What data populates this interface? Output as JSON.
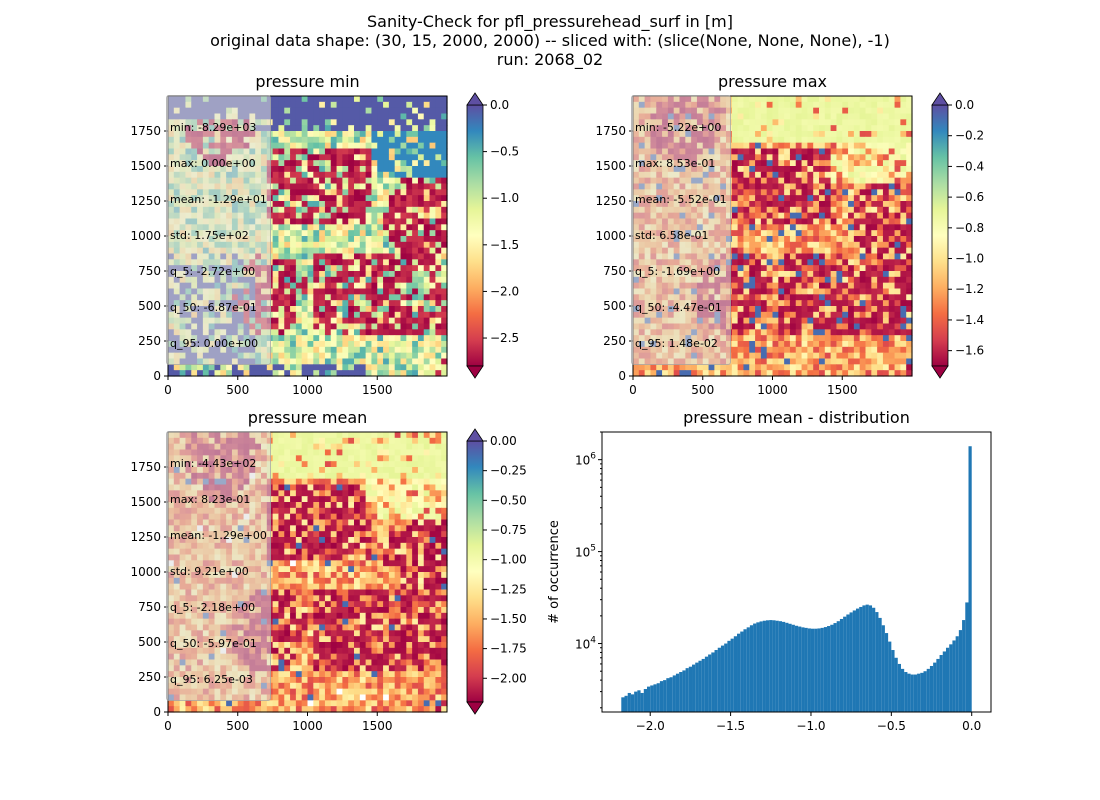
{
  "figure": {
    "suptitle_lines": [
      "Sanity-Check for pfl_pressurehead_surf in [m]",
      "original data shape: (30, 15, 2000, 2000) -- sliced with: (slice(None, None, None), -1)",
      "run: 2068_02"
    ]
  },
  "chart_data": [
    {
      "type": "heatmap",
      "title": "pressure min",
      "colormap": "Spectral",
      "x_ticks": [
        "0",
        "500",
        "1000",
        "1500"
      ],
      "y_ticks": [
        "0",
        "250",
        "500",
        "750",
        "1000",
        "1250",
        "1500",
        "1750"
      ],
      "xlim": [
        0,
        2000
      ],
      "ylim": [
        0,
        2000
      ],
      "colorbar": {
        "range": [
          -2.8,
          0.0
        ],
        "ticks": [
          0.0,
          -0.5,
          -1.0,
          -1.5,
          -2.0,
          -2.5
        ],
        "tick_labels": [
          "0.0",
          "−0.5",
          "−1.0",
          "−1.5",
          "−2.0",
          "−2.5"
        ],
        "extend": "both"
      },
      "stats": [
        "min: -8.29e+03",
        "max: 0.00e+00",
        "mean: -1.29e+01",
        "std: 1.75e+02",
        "q_5: -2.72e+00",
        "q_50: -6.87e-01",
        "q_95: 0.00e+00"
      ]
    },
    {
      "type": "heatmap",
      "title": "pressure max",
      "colormap": "Spectral",
      "x_ticks": [
        "0",
        "500",
        "1000",
        "1500"
      ],
      "y_ticks": [
        "0",
        "250",
        "500",
        "750",
        "1000",
        "1250",
        "1500",
        "1750"
      ],
      "xlim": [
        0,
        2000
      ],
      "ylim": [
        0,
        2000
      ],
      "colorbar": {
        "range": [
          -1.7,
          0.0
        ],
        "ticks": [
          0.0,
          -0.2,
          -0.4,
          -0.6,
          -0.8,
          -1.0,
          -1.2,
          -1.4,
          -1.6
        ],
        "tick_labels": [
          "0.0",
          "−0.2",
          "−0.4",
          "−0.6",
          "−0.8",
          "−1.0",
          "−1.2",
          "−1.4",
          "−1.6"
        ],
        "extend": "both"
      },
      "stats": [
        "min: -5.22e+00",
        "max: 8.53e-01",
        "mean: -5.52e-01",
        "std: 6.58e-01",
        "q_5: -1.69e+00",
        "q_50: -4.47e-01",
        "q_95: 1.48e-02"
      ]
    },
    {
      "type": "heatmap",
      "title": "pressure mean",
      "colormap": "Spectral",
      "x_ticks": [
        "0",
        "500",
        "1000",
        "1500"
      ],
      "y_ticks": [
        "0",
        "250",
        "500",
        "750",
        "1000",
        "1250",
        "1500",
        "1750"
      ],
      "xlim": [
        0,
        2000
      ],
      "ylim": [
        0,
        2000
      ],
      "colorbar": {
        "range": [
          -2.2,
          0.0
        ],
        "ticks": [
          0.0,
          -0.25,
          -0.5,
          -0.75,
          -1.0,
          -1.25,
          -1.5,
          -1.75,
          -2.0
        ],
        "tick_labels": [
          "0.00",
          "−0.25",
          "−0.50",
          "−0.75",
          "−1.00",
          "−1.25",
          "−1.50",
          "−1.75",
          "−2.00"
        ],
        "extend": "both"
      },
      "stats": [
        "min: -4.43e+02",
        "max: 8.23e-01",
        "mean: -1.29e+00",
        "std: 9.21e+00",
        "q_5: -2.18e+00",
        "q_50: -5.97e-01",
        "q_95: 6.25e-03"
      ]
    },
    {
      "type": "bar",
      "title": "pressure mean - distribution",
      "ylabel": "# of occurrence",
      "yscale": "log",
      "color": "#1f77b4",
      "xlim": [
        -2.3,
        0.12
      ],
      "ylim": [
        1800,
        2000000
      ],
      "x_ticks": [
        -2.0,
        -1.5,
        -1.0,
        -0.5,
        0.0
      ],
      "x_tick_labels": [
        "−2.0",
        "−1.5",
        "−1.0",
        "−0.5",
        "0.0"
      ],
      "y_ticks": [
        10000,
        100000,
        1000000
      ],
      "y_tick_base": "10",
      "y_tick_exps": [
        "4",
        "5",
        "6"
      ],
      "bin_range": [
        -2.18,
        0.0
      ],
      "series": [
        {
          "values": [
            2600,
            2700,
            2900,
            2800,
            3000,
            3100,
            2900,
            3200,
            3400,
            3500,
            3600,
            3700,
            3900,
            4000,
            4200,
            4300,
            4500,
            4700,
            4900,
            5100,
            5400,
            5600,
            5900,
            6200,
            6500,
            6800,
            7200,
            7600,
            8000,
            8500,
            9000,
            9500,
            10000,
            10700,
            11300,
            12000,
            12800,
            13500,
            14300,
            15000,
            15800,
            16500,
            17000,
            17400,
            17700,
            17900,
            18000,
            17900,
            17700,
            17500,
            17200,
            16800,
            16400,
            16000,
            15600,
            15300,
            15000,
            14800,
            14600,
            14500,
            14500,
            14600,
            14800,
            15100,
            15500,
            16000,
            16700,
            17500,
            18500,
            19600,
            20700,
            21800,
            22900,
            24000,
            25000,
            26000,
            26500,
            26000,
            24500,
            22000,
            19000,
            15800,
            13000,
            10500,
            8500,
            7000,
            6000,
            5300,
            4900,
            4700,
            4600,
            4600,
            4700,
            4800,
            5000,
            5300,
            5700,
            6200,
            6800,
            7500,
            8200,
            9000,
            9800,
            10800,
            12000,
            14000,
            18000,
            28000,
            1400000
          ]
        }
      ]
    }
  ]
}
